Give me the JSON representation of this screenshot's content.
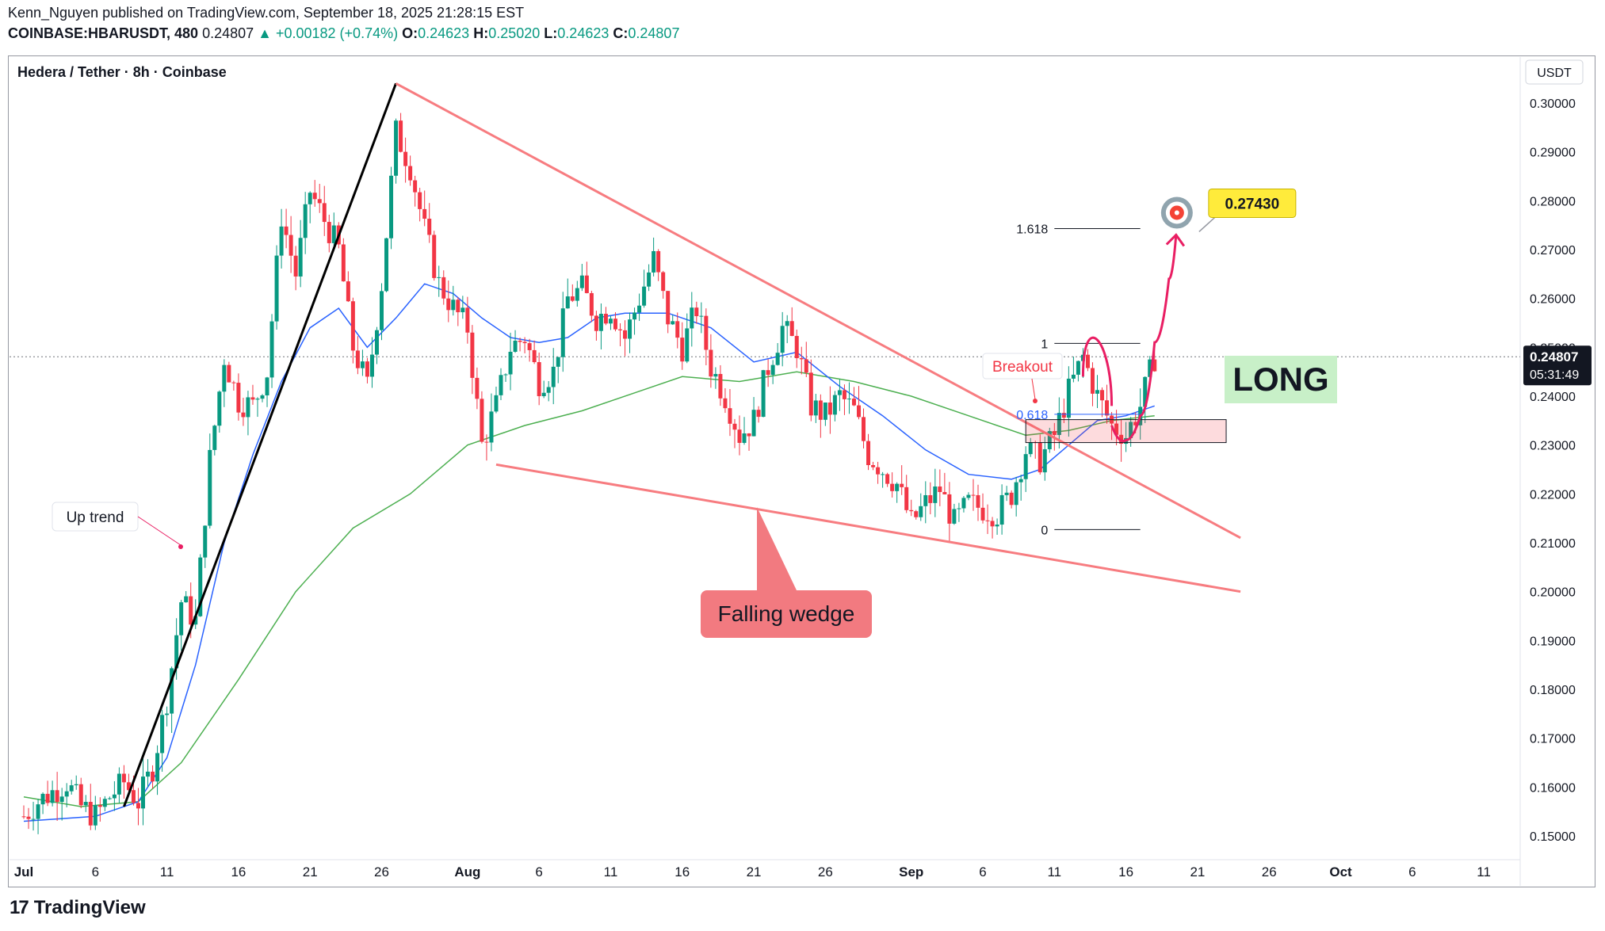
{
  "header": {
    "line1": "Kenn_Nguyen published on TradingView.com, September 18, 2025 21:28:15 EST",
    "symbol": "COINBASE:HBARUSDT, 480",
    "price": "0.24807",
    "change": "▲ +0.00182 (+0.74%)",
    "o_label": "O:",
    "o": "0.24623",
    "h_label": "H:",
    "h": "0.25020",
    "l_label": "L:",
    "l": "0.24623",
    "c_label": "C:",
    "c": "0.24807"
  },
  "footer": {
    "brand": "TradingView",
    "logo": "17"
  },
  "chart_data": {
    "type": "candlestick",
    "title": "Hedera / Tether · 8h · Coinbase",
    "currency": "USDT",
    "ylim": [
      0.145,
      0.305
    ],
    "yticks": [
      "0.30000",
      "0.29000",
      "0.28000",
      "0.27000",
      "0.26000",
      "0.25000",
      "0.24000",
      "0.23000",
      "0.22000",
      "0.21000",
      "0.20000",
      "0.19000",
      "0.18000",
      "0.17000",
      "0.16000",
      "0.15000"
    ],
    "ytick_values": [
      0.3,
      0.29,
      0.28,
      0.27,
      0.26,
      0.25,
      0.24,
      0.23,
      0.22,
      0.21,
      0.2,
      0.19,
      0.18,
      0.17,
      0.16,
      0.15
    ],
    "x_start": "2025-07-01",
    "x_end": "2025-10-14",
    "xticks": [
      {
        "label": "Jul",
        "date": "2025-07-01",
        "bold": true
      },
      {
        "label": "6",
        "date": "2025-07-06"
      },
      {
        "label": "11",
        "date": "2025-07-11"
      },
      {
        "label": "16",
        "date": "2025-07-16"
      },
      {
        "label": "21",
        "date": "2025-07-21"
      },
      {
        "label": "26",
        "date": "2025-07-26"
      },
      {
        "label": "Aug",
        "date": "2025-08-01",
        "bold": true
      },
      {
        "label": "6",
        "date": "2025-08-06"
      },
      {
        "label": "11",
        "date": "2025-08-11"
      },
      {
        "label": "16",
        "date": "2025-08-16"
      },
      {
        "label": "21",
        "date": "2025-08-21"
      },
      {
        "label": "26",
        "date": "2025-08-26"
      },
      {
        "label": "Sep",
        "date": "2025-09-01",
        "bold": true
      },
      {
        "label": "6",
        "date": "2025-09-06"
      },
      {
        "label": "11",
        "date": "2025-09-11"
      },
      {
        "label": "16",
        "date": "2025-09-16"
      },
      {
        "label": "21",
        "date": "2025-09-21"
      },
      {
        "label": "26",
        "date": "2025-09-26"
      },
      {
        "label": "Oct",
        "date": "2025-10-01",
        "bold": true
      },
      {
        "label": "6",
        "date": "2025-10-06"
      },
      {
        "label": "11",
        "date": "2025-10-11"
      }
    ],
    "last_price": {
      "value": 0.24807,
      "label": "0.24807",
      "countdown": "05:31:49"
    },
    "price_path": [
      [
        "2025-07-01",
        0.154
      ],
      [
        "2025-07-02",
        0.157
      ],
      [
        "2025-07-04",
        0.161
      ],
      [
        "2025-07-05",
        0.156
      ],
      [
        "2025-07-06",
        0.154
      ],
      [
        "2025-07-07",
        0.158
      ],
      [
        "2025-07-08",
        0.161
      ],
      [
        "2025-07-09",
        0.157
      ],
      [
        "2025-07-10",
        0.164
      ],
      [
        "2025-07-11",
        0.178
      ],
      [
        "2025-07-12",
        0.198
      ],
      [
        "2025-07-13",
        0.194
      ],
      [
        "2025-07-14",
        0.227
      ],
      [
        "2025-07-15",
        0.248
      ],
      [
        "2025-07-16",
        0.239
      ],
      [
        "2025-07-17",
        0.238
      ],
      [
        "2025-07-18",
        0.245
      ],
      [
        "2025-07-19",
        0.277
      ],
      [
        "2025-07-20",
        0.265
      ],
      [
        "2025-07-21",
        0.282
      ],
      [
        "2025-07-22",
        0.276
      ],
      [
        "2025-07-23",
        0.27
      ],
      [
        "2025-07-24",
        0.25
      ],
      [
        "2025-07-25",
        0.242
      ],
      [
        "2025-07-26",
        0.263
      ],
      [
        "2025-07-27",
        0.294
      ],
      [
        "2025-07-28",
        0.287
      ],
      [
        "2025-07-29",
        0.274
      ],
      [
        "2025-07-30",
        0.263
      ],
      [
        "2025-07-31",
        0.258
      ],
      [
        "2025-08-01",
        0.254
      ],
      [
        "2025-08-02",
        0.23
      ],
      [
        "2025-08-03",
        0.238
      ],
      [
        "2025-08-04",
        0.25
      ],
      [
        "2025-08-05",
        0.252
      ],
      [
        "2025-08-06",
        0.243
      ],
      [
        "2025-08-07",
        0.245
      ],
      [
        "2025-08-08",
        0.26
      ],
      [
        "2025-08-09",
        0.262
      ],
      [
        "2025-08-10",
        0.256
      ],
      [
        "2025-08-11",
        0.258
      ],
      [
        "2025-08-12",
        0.252
      ],
      [
        "2025-08-13",
        0.26
      ],
      [
        "2025-08-14",
        0.268
      ],
      [
        "2025-08-15",
        0.256
      ],
      [
        "2025-08-16",
        0.25
      ],
      [
        "2025-08-17",
        0.258
      ],
      [
        "2025-08-18",
        0.246
      ],
      [
        "2025-08-19",
        0.24
      ],
      [
        "2025-08-20",
        0.232
      ],
      [
        "2025-08-21",
        0.235
      ],
      [
        "2025-08-22",
        0.246
      ],
      [
        "2025-08-23",
        0.254
      ],
      [
        "2025-08-24",
        0.25
      ],
      [
        "2025-08-25",
        0.238
      ],
      [
        "2025-08-26",
        0.236
      ],
      [
        "2025-08-27",
        0.24
      ],
      [
        "2025-08-28",
        0.237
      ],
      [
        "2025-08-29",
        0.228
      ],
      [
        "2025-08-30",
        0.225
      ],
      [
        "2025-08-31",
        0.222
      ],
      [
        "2025-09-01",
        0.214
      ],
      [
        "2025-09-02",
        0.218
      ],
      [
        "2025-09-03",
        0.221
      ],
      [
        "2025-09-04",
        0.214
      ],
      [
        "2025-09-05",
        0.218
      ],
      [
        "2025-09-06",
        0.217
      ],
      [
        "2025-09-07",
        0.216
      ],
      [
        "2025-09-08",
        0.22
      ],
      [
        "2025-09-09",
        0.229
      ],
      [
        "2025-09-10",
        0.227
      ],
      [
        "2025-09-11",
        0.232
      ],
      [
        "2025-09-12",
        0.241
      ],
      [
        "2025-09-13",
        0.248
      ],
      [
        "2025-09-14",
        0.24
      ],
      [
        "2025-09-15",
        0.234
      ],
      [
        "2025-09-16",
        0.232
      ],
      [
        "2025-09-17",
        0.238
      ],
      [
        "2025-09-18",
        0.248
      ]
    ],
    "ema_fast": [
      [
        "2025-07-01",
        0.153
      ],
      [
        "2025-07-06",
        0.154
      ],
      [
        "2025-07-09",
        0.157
      ],
      [
        "2025-07-11",
        0.166
      ],
      [
        "2025-07-13",
        0.185
      ],
      [
        "2025-07-15",
        0.21
      ],
      [
        "2025-07-17",
        0.228
      ],
      [
        "2025-07-19",
        0.243
      ],
      [
        "2025-07-21",
        0.254
      ],
      [
        "2025-07-23",
        0.258
      ],
      [
        "2025-07-25",
        0.25
      ],
      [
        "2025-07-27",
        0.256
      ],
      [
        "2025-07-29",
        0.263
      ],
      [
        "2025-07-31",
        0.261
      ],
      [
        "2025-08-02",
        0.256
      ],
      [
        "2025-08-04",
        0.252
      ],
      [
        "2025-08-06",
        0.251
      ],
      [
        "2025-08-08",
        0.252
      ],
      [
        "2025-08-10",
        0.256
      ],
      [
        "2025-08-12",
        0.257
      ],
      [
        "2025-08-15",
        0.257
      ],
      [
        "2025-08-18",
        0.254
      ],
      [
        "2025-08-21",
        0.247
      ],
      [
        "2025-08-24",
        0.249
      ],
      [
        "2025-08-27",
        0.242
      ],
      [
        "2025-08-30",
        0.236
      ],
      [
        "2025-09-02",
        0.229
      ],
      [
        "2025-09-05",
        0.224
      ],
      [
        "2025-09-08",
        0.223
      ],
      [
        "2025-09-10",
        0.225
      ],
      [
        "2025-09-12",
        0.23
      ],
      [
        "2025-09-14",
        0.235
      ],
      [
        "2025-09-16",
        0.236
      ],
      [
        "2025-09-18",
        0.238
      ]
    ],
    "ema_slow": [
      [
        "2025-07-01",
        0.158
      ],
      [
        "2025-07-05",
        0.156
      ],
      [
        "2025-07-09",
        0.157
      ],
      [
        "2025-07-12",
        0.165
      ],
      [
        "2025-07-16",
        0.182
      ],
      [
        "2025-07-20",
        0.2
      ],
      [
        "2025-07-24",
        0.213
      ],
      [
        "2025-07-28",
        0.22
      ],
      [
        "2025-08-01",
        0.23
      ],
      [
        "2025-08-05",
        0.234
      ],
      [
        "2025-08-09",
        0.237
      ],
      [
        "2025-08-13",
        0.241
      ],
      [
        "2025-08-16",
        0.244
      ],
      [
        "2025-08-20",
        0.243
      ],
      [
        "2025-08-24",
        0.245
      ],
      [
        "2025-08-28",
        0.243
      ],
      [
        "2025-09-01",
        0.24
      ],
      [
        "2025-09-05",
        0.236
      ],
      [
        "2025-09-09",
        0.232
      ],
      [
        "2025-09-12",
        0.233
      ],
      [
        "2025-09-15",
        0.235
      ],
      [
        "2025-09-18",
        0.236
      ]
    ],
    "trendline_up": [
      [
        "2025-07-08",
        0.156
      ],
      [
        "2025-07-27",
        0.304
      ]
    ],
    "wedge_upper": [
      [
        "2025-07-27",
        0.304
      ],
      [
        "2025-09-24",
        0.211
      ]
    ],
    "wedge_lower": [
      [
        "2025-08-03",
        0.226
      ],
      [
        "2025-09-24",
        0.2
      ]
    ],
    "fib_levels": [
      {
        "label": "1.618",
        "value": 0.2743,
        "from": "2025-09-11",
        "to": "2025-09-17"
      },
      {
        "label": "1",
        "value": 0.2508,
        "from": "2025-09-11",
        "to": "2025-09-17"
      },
      {
        "label": "0.618",
        "value": 0.2363,
        "from": "2025-09-11",
        "to": "2025-09-17"
      },
      {
        "label": "0",
        "value": 0.2127,
        "from": "2025-09-11",
        "to": "2025-09-17"
      }
    ],
    "support_zone": {
      "from": "2025-09-09",
      "to": "2025-09-23",
      "low": 0.2305,
      "high": 0.2352
    },
    "projection": [
      [
        "2025-09-15",
        0.234
      ],
      [
        "2025-09-16",
        0.231
      ],
      [
        "2025-09-17",
        0.236
      ],
      [
        "2025-09-18",
        0.251
      ],
      [
        "2025-09-19",
        0.264
      ],
      [
        "2025-09-19T12:00",
        0.273
      ]
    ],
    "target": {
      "value": 0.2743,
      "label": "0.27430",
      "date": "2025-09-20"
    },
    "annotations": {
      "up_trend": "Up trend",
      "breakout": "Breakout",
      "falling_wedge": "Falling wedge",
      "long": "LONG"
    },
    "colors": {
      "up": "#089981",
      "down": "#f23645",
      "ema_fast": "#2962ff",
      "ema_slow": "#4caf50",
      "wedge": "#f77c80",
      "trend": "#000000",
      "projection": "#e91e63",
      "long_bg": "#c8f0c8",
      "target_bg": "#ffeb3b"
    }
  }
}
